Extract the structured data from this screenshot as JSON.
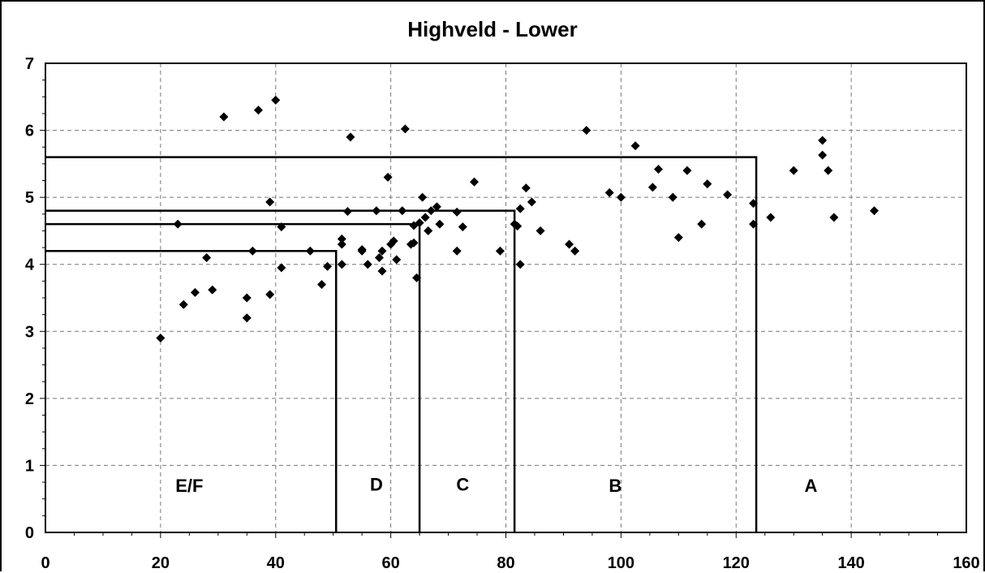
{
  "chart_data": {
    "type": "scatter",
    "title": "Highveld - Lower",
    "xlabel": "",
    "ylabel": "",
    "xlim": [
      0,
      160
    ],
    "ylim": [
      0,
      7
    ],
    "x_ticks": [
      0,
      20,
      40,
      60,
      80,
      100,
      120,
      140,
      160
    ],
    "y_ticks": [
      0,
      1,
      2,
      3,
      4,
      5,
      6,
      7
    ],
    "grid": true,
    "marker": "diamond",
    "marker_color": "#000000",
    "series": [
      {
        "points": [
          [
            20,
            2.9
          ],
          [
            23,
            4.6
          ],
          [
            24,
            3.4
          ],
          [
            26,
            3.58
          ],
          [
            28,
            4.1
          ],
          [
            29,
            3.62
          ],
          [
            31,
            6.2
          ],
          [
            35,
            3.5
          ],
          [
            35,
            3.2
          ],
          [
            36,
            4.2
          ],
          [
            37,
            6.3
          ],
          [
            39,
            4.93
          ],
          [
            39,
            3.55
          ],
          [
            40,
            6.45
          ],
          [
            41,
            4.56
          ],
          [
            41,
            3.95
          ],
          [
            46,
            4.2
          ],
          [
            48,
            3.7
          ],
          [
            49,
            3.97
          ],
          [
            51.5,
            4.38
          ],
          [
            51.5,
            4.3
          ],
          [
            51.5,
            4.0
          ],
          [
            52.5,
            4.79
          ],
          [
            53,
            5.9
          ],
          [
            55,
            4.22
          ],
          [
            55,
            4.2
          ],
          [
            56,
            4.0
          ],
          [
            57.5,
            4.8
          ],
          [
            58,
            4.1
          ],
          [
            58.5,
            3.9
          ],
          [
            58.5,
            4.2
          ],
          [
            59.5,
            5.3
          ],
          [
            60,
            4.3
          ],
          [
            60.5,
            4.35
          ],
          [
            61,
            4.07
          ],
          [
            62,
            4.8
          ],
          [
            62.5,
            6.02
          ],
          [
            63.5,
            4.3
          ],
          [
            64,
            4.58
          ],
          [
            64,
            4.32
          ],
          [
            64.5,
            3.8
          ],
          [
            65,
            4.62
          ],
          [
            65.5,
            5.0
          ],
          [
            66,
            4.7
          ],
          [
            66.5,
            4.5
          ],
          [
            67,
            4.8
          ],
          [
            68,
            4.86
          ],
          [
            68.5,
            4.6
          ],
          [
            71.5,
            4.78
          ],
          [
            71.5,
            4.2
          ],
          [
            72.5,
            4.56
          ],
          [
            74.5,
            5.23
          ],
          [
            79,
            4.2
          ],
          [
            81.5,
            4.6
          ],
          [
            82,
            4.57
          ],
          [
            82.5,
            4.83
          ],
          [
            82.5,
            4.0
          ],
          [
            83.5,
            5.14
          ],
          [
            84.5,
            4.93
          ],
          [
            86,
            4.5
          ],
          [
            91,
            4.3
          ],
          [
            92,
            4.2
          ],
          [
            94,
            6.0
          ],
          [
            98,
            5.07
          ],
          [
            100,
            5.0
          ],
          [
            102.5,
            5.77
          ],
          [
            105.5,
            5.15
          ],
          [
            106.5,
            5.42
          ],
          [
            109,
            5.0
          ],
          [
            110,
            4.4
          ],
          [
            111.5,
            5.4
          ],
          [
            114,
            4.6
          ],
          [
            115,
            5.2
          ],
          [
            118.5,
            5.04
          ],
          [
            123,
            4.91
          ],
          [
            123,
            4.6
          ],
          [
            126,
            4.7
          ],
          [
            130,
            5.4
          ],
          [
            135,
            5.85
          ],
          [
            135,
            5.63
          ],
          [
            136,
            5.4
          ],
          [
            137,
            4.7
          ],
          [
            144,
            4.8
          ]
        ]
      }
    ],
    "zone_boundaries": [
      {
        "x": 50.5,
        "y": 4.2
      },
      {
        "x": 65,
        "y": 4.6
      },
      {
        "x": 81.5,
        "y": 4.8
      },
      {
        "x": 123.5,
        "y": 5.6
      }
    ],
    "zone_labels": [
      {
        "text": "E/F",
        "x": 25,
        "y": 0.7
      },
      {
        "text": "D",
        "x": 57.5,
        "y": 0.72
      },
      {
        "text": "C",
        "x": 72.5,
        "y": 0.72
      },
      {
        "text": "B",
        "x": 99,
        "y": 0.7
      },
      {
        "text": "A",
        "x": 133,
        "y": 0.7
      }
    ]
  }
}
